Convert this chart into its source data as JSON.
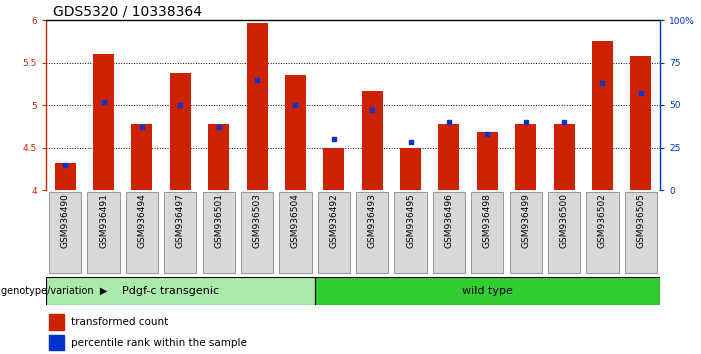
{
  "title": "GDS5320 / 10338364",
  "samples": [
    "GSM936490",
    "GSM936491",
    "GSM936494",
    "GSM936497",
    "GSM936501",
    "GSM936503",
    "GSM936504",
    "GSM936492",
    "GSM936493",
    "GSM936495",
    "GSM936496",
    "GSM936498",
    "GSM936499",
    "GSM936500",
    "GSM936502",
    "GSM936505"
  ],
  "red_values": [
    4.32,
    5.6,
    4.78,
    5.38,
    4.78,
    5.96,
    5.35,
    4.5,
    5.17,
    4.5,
    4.78,
    4.68,
    4.78,
    4.78,
    5.75,
    5.58
  ],
  "blue_values": [
    15,
    52,
    37,
    50,
    37,
    65,
    50,
    30,
    47,
    28,
    40,
    33,
    40,
    40,
    63,
    57
  ],
  "ylim_left": [
    4.0,
    6.0
  ],
  "ylim_right": [
    0,
    100
  ],
  "yticks_left": [
    4.0,
    4.5,
    5.0,
    5.5,
    6.0
  ],
  "ytick_labels_left": [
    "4",
    "4.5",
    "5",
    "5.5",
    "6"
  ],
  "yticks_right": [
    0,
    25,
    50,
    75,
    100
  ],
  "ytick_labels_right": [
    "0",
    "25",
    "50",
    "75",
    "100%"
  ],
  "group1_samples": 7,
  "group1_label": "Pdgf-c transgenic",
  "group2_label": "wild type",
  "bar_color": "#cc2200",
  "blue_color": "#0033cc",
  "group1_bg": "#aaeaaa",
  "group2_bg": "#33cc33",
  "legend_red": "transformed count",
  "legend_blue": "percentile rank within the sample",
  "genotype_label": "genotype/variation",
  "title_fontsize": 10,
  "tick_fontsize": 6.5,
  "bar_width": 0.55,
  "bar_base": 4.0,
  "hgrid_vals": [
    4.5,
    5.0,
    5.5
  ],
  "gray_cell": "#d8d8d8",
  "cell_edge": "#888888",
  "white": "#ffffff"
}
